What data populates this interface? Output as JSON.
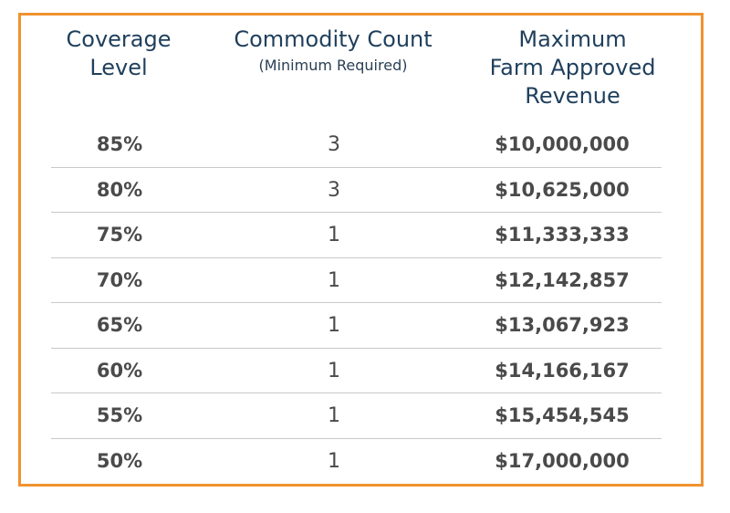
{
  "table": {
    "headers": {
      "coverage": [
        "Coverage",
        "Level"
      ],
      "commodity": [
        "Commodity Count"
      ],
      "commodity_sub": "(Minimum Required)",
      "revenue": [
        "Maximum",
        "Farm Approved",
        "Revenue"
      ]
    },
    "rows": [
      {
        "coverage": "85%",
        "commodity": "3",
        "revenue": "$10,000,000"
      },
      {
        "coverage": "80%",
        "commodity": "3",
        "revenue": "$10,625,000"
      },
      {
        "coverage": "75%",
        "commodity": "1",
        "revenue": "$11,333,333"
      },
      {
        "coverage": "70%",
        "commodity": "1",
        "revenue": "$12,142,857"
      },
      {
        "coverage": "65%",
        "commodity": "1",
        "revenue": "$13,067,923"
      },
      {
        "coverage": "60%",
        "commodity": "1",
        "revenue": "$14,166,167"
      },
      {
        "coverage": "55%",
        "commodity": "1",
        "revenue": "$15,454,545"
      },
      {
        "coverage": "50%",
        "commodity": "1",
        "revenue": "$17,000,000"
      }
    ]
  },
  "colors": {
    "border": "#f0922f",
    "header_text": "#1f3f5c",
    "body_text": "#4a4a4a",
    "divider": "#c9c9c9"
  }
}
